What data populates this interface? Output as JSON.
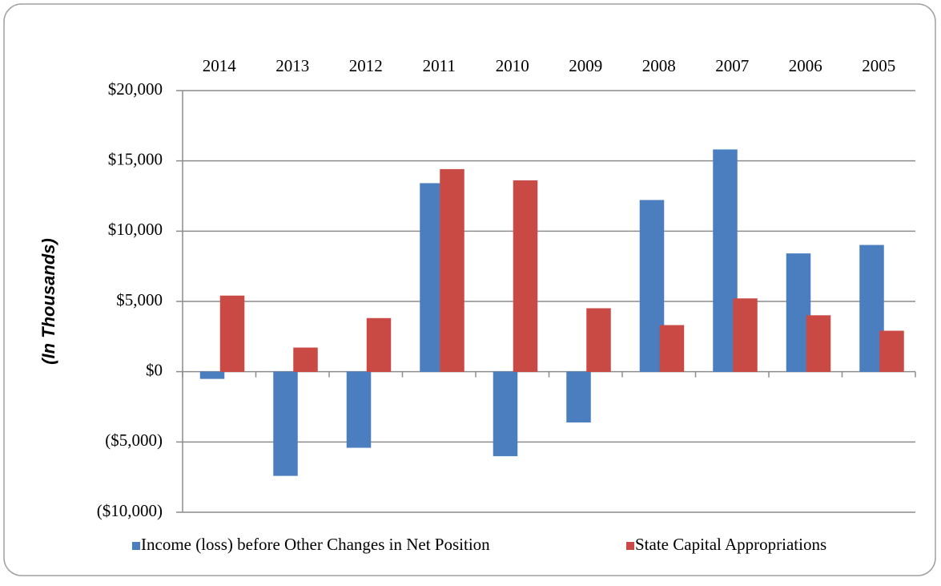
{
  "chart_data": {
    "type": "bar",
    "y_label": "(In Thousands)",
    "categories": [
      "2014",
      "2013",
      "2012",
      "2011",
      "2010",
      "2009",
      "2008",
      "2007",
      "2006",
      "2005"
    ],
    "series": [
      {
        "name": "Income (loss) before Other Changes in Net Position",
        "color": "#4a7ebf",
        "values": [
          -500,
          -7400,
          -5400,
          13400,
          -6000,
          -3600,
          12200,
          15800,
          8400,
          9000
        ]
      },
      {
        "name": "State Capital Appropriations",
        "color": "#c94a45",
        "values": [
          5400,
          1700,
          3800,
          14400,
          13600,
          4500,
          3300,
          5200,
          4000,
          2900
        ]
      }
    ],
    "ylim": [
      -10000,
      20000
    ],
    "yticks": [
      {
        "value": -10000,
        "label": "($10,000)"
      },
      {
        "value": -5000,
        "label": "($5,000)"
      },
      {
        "value": 0,
        "label": "$0"
      },
      {
        "value": 5000,
        "label": "$5,000"
      },
      {
        "value": 10000,
        "label": "$10,000"
      },
      {
        "value": 15000,
        "label": "$15,000"
      },
      {
        "value": 20000,
        "label": "$20,000"
      }
    ],
    "grid": true,
    "legend": "bottom"
  }
}
